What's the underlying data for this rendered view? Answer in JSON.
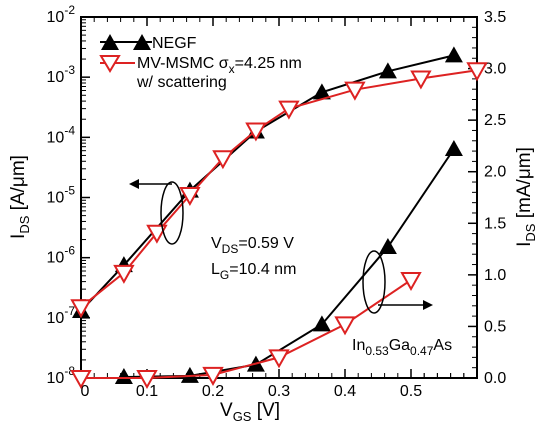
{
  "chart_data": {
    "type": "line",
    "xlabel_main": "V",
    "xlabel_sub": "GS",
    "xlabel_unit": " [V]",
    "x_ticks": [
      "0",
      "0.1",
      "0.2",
      "0.3",
      "0.4",
      "0.5"
    ],
    "xlim": [
      0,
      0.6
    ],
    "y_left": {
      "label_main": "I",
      "label_sub": "DS",
      "label_unit": " [A/μm]",
      "scale": "log",
      "lim": [
        1e-08,
        0.01
      ],
      "ticks": [
        {
          "value": 1e-08,
          "base": "10",
          "exp": "-8"
        },
        {
          "value": 1e-07,
          "base": "10",
          "exp": "-7"
        },
        {
          "value": 1e-06,
          "base": "10",
          "exp": "-6"
        },
        {
          "value": 1e-05,
          "base": "10",
          "exp": "-5"
        },
        {
          "value": 0.0001,
          "base": "10",
          "exp": "-4"
        },
        {
          "value": 0.001,
          "base": "10",
          "exp": "-3"
        },
        {
          "value": 0.01,
          "base": "10",
          "exp": "-2"
        }
      ]
    },
    "y_right": {
      "label_main": "I",
      "label_sub": "DS",
      "label_unit": " [mA/μm]",
      "scale": "linear",
      "lim": [
        0,
        3.5
      ],
      "ticks": [
        "0.0",
        "0.5",
        "1.0",
        "1.5",
        "2.0",
        "2.5",
        "3.0",
        "3.5"
      ]
    },
    "legend": {
      "placement": "top-left",
      "negf": "NEGF",
      "msmc_line1": "MV-MSMC σ",
      "msmc_sub": "x",
      "msmc_line1_end": "=4.25 nm",
      "msmc_line2": "w/ scattering"
    },
    "annotations": {
      "vds": "V",
      "vds_sub": "DS",
      "vds_val": "=0.59 V",
      "lg": "L",
      "lg_sub": "G",
      "lg_val": "=10.4 nm",
      "material_1": "In",
      "material_sub1": "0.53",
      "material_2": "Ga",
      "material_sub2": "0.47",
      "material_3": "As"
    },
    "series": [
      {
        "name": "NEGF",
        "axis": "left-log",
        "color": "#000000",
        "marker": "triangle-up",
        "x": [
          0.0,
          0.065,
          0.165,
          0.265,
          0.365,
          0.465,
          0.565
        ],
        "y": [
          1.3e-07,
          7.5e-07,
          1.3e-05,
          0.000125,
          0.00056,
          0.00125,
          0.0023
        ]
      },
      {
        "name": "MV-MSMC w/ scattering",
        "axis": "left-log",
        "color": "#dd2222",
        "marker": "triangle-down",
        "x": [
          0.0,
          0.065,
          0.115,
          0.165,
          0.215,
          0.265,
          0.315,
          0.415,
          0.515,
          0.6
        ],
        "y": [
          1.5e-07,
          5.6e-07,
          2.6e-06,
          1.1e-05,
          4.5e-05,
          0.00013,
          0.0003,
          0.00062,
          0.00095,
          0.0013
        ]
      },
      {
        "name": "NEGF",
        "axis": "right-linear",
        "color": "#000000",
        "marker": "triangle-up",
        "x": [
          0.065,
          0.165,
          0.265,
          0.365,
          0.465,
          0.565
        ],
        "y": [
          0.01,
          0.02,
          0.13,
          0.52,
          1.27,
          2.22
        ]
      },
      {
        "name": "MV-MSMC w/ scattering",
        "axis": "right-linear",
        "color": "#dd2222",
        "marker": "triangle-down",
        "x": [
          0.0,
          0.1,
          0.2,
          0.3,
          0.4,
          0.5
        ],
        "y": [
          0.0,
          0.0,
          0.03,
          0.2,
          0.52,
          0.95
        ]
      }
    ]
  }
}
